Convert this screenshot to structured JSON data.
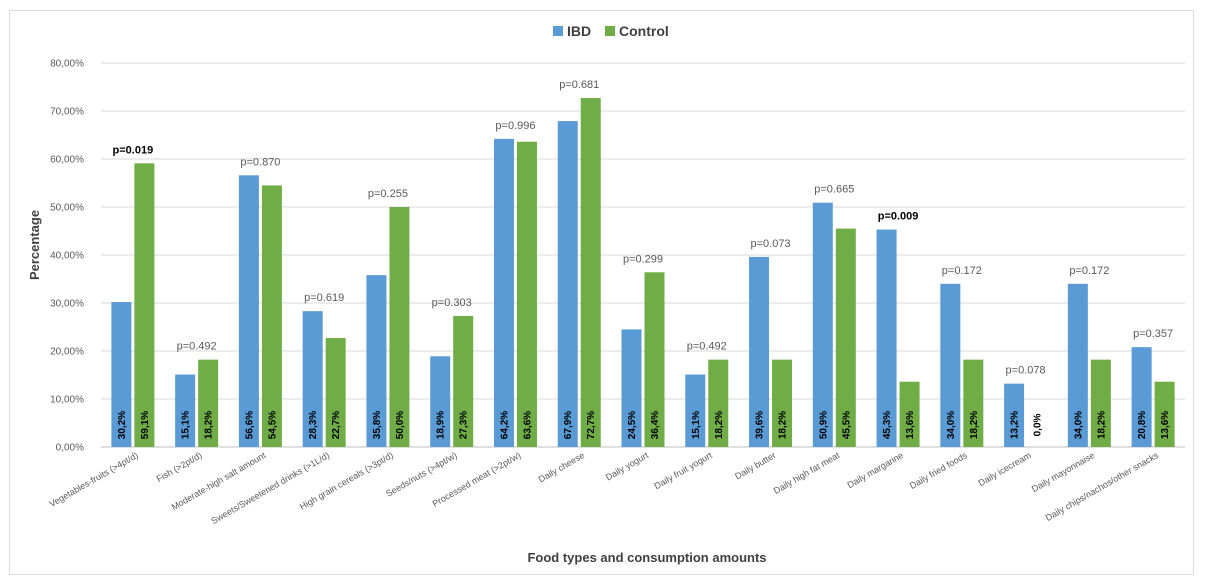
{
  "chart_data": {
    "type": "bar",
    "xlabel": "Food types and consumption amounts",
    "ylabel": "Percentage",
    "ylim": [
      0,
      80
    ],
    "yticks": [
      "0,00%",
      "10,00%",
      "20,00%",
      "30,00%",
      "40,00%",
      "50,00%",
      "60,00%",
      "70,00%",
      "80,00%"
    ],
    "grid": true,
    "legend_position": "top",
    "categories": [
      "Vegetables-fruits (>4pt/d)",
      "Fish (>2pt/d)",
      "Moderate-high salt amount",
      "Sweets/Sweetened drinks (>1L/d)",
      "High grain cereals (>3pt/d)",
      "Seeds/nuts (>4pt/w)",
      "Processed meat (>2pt/w)",
      "Daily cheese",
      "Daily yogurt",
      "Daily fruit yogurt",
      "Daily butter",
      "Daily high fat meat",
      "Daily margarine",
      "Daily fried foods",
      "Daily icecream",
      "Daily mayonnaise",
      "Daily chips/nachos/other snacks"
    ],
    "series": [
      {
        "name": "IBD",
        "color": "#5b9bd5",
        "values": [
          30.2,
          15.1,
          56.6,
          28.3,
          35.8,
          18.9,
          64.2,
          67.9,
          24.5,
          15.1,
          39.6,
          50.9,
          45.3,
          34.0,
          13.2,
          34.0,
          20.8
        ],
        "labels": [
          "30,2%",
          "15,1%",
          "56,6%",
          "28,3%",
          "35,8%",
          "18,9%",
          "64,2%",
          "67,9%",
          "24,5%",
          "15,1%",
          "39,6%",
          "50,9%",
          "45,3%",
          "34,0%",
          "13,2%",
          "34,0%",
          "20,8%"
        ]
      },
      {
        "name": "Control",
        "color": "#70ad47",
        "values": [
          59.1,
          18.2,
          54.5,
          22.7,
          50.0,
          27.3,
          63.6,
          72.7,
          36.4,
          18.2,
          18.2,
          45.5,
          13.6,
          18.2,
          0.0,
          18.2,
          13.6
        ],
        "labels": [
          "59,1%",
          "18,2%",
          "54,5%",
          "22,7%",
          "50,0%",
          "27,3%",
          "63,6%",
          "72,7%",
          "36,4%",
          "18,2%",
          "18,2%",
          "45,5%",
          "13,6%",
          "18,2%",
          "0,0%",
          "18,2%",
          "13,6%"
        ]
      }
    ],
    "annotations": [
      "p=0.019",
      "p=0.492",
      "p=0.870",
      "p=0.619",
      "p=0.255",
      "p=0.303",
      "p=0.996",
      "p=0.681",
      "p=0.299",
      "p=0.492",
      "p=0.073",
      "p=0.665",
      "p=0.009",
      "p=0.172",
      "p=0.078",
      "p=0.172",
      "p=0.357"
    ],
    "annotation_bold": [
      true,
      false,
      false,
      false,
      false,
      false,
      false,
      false,
      false,
      false,
      false,
      false,
      true,
      false,
      false,
      false,
      false
    ]
  }
}
